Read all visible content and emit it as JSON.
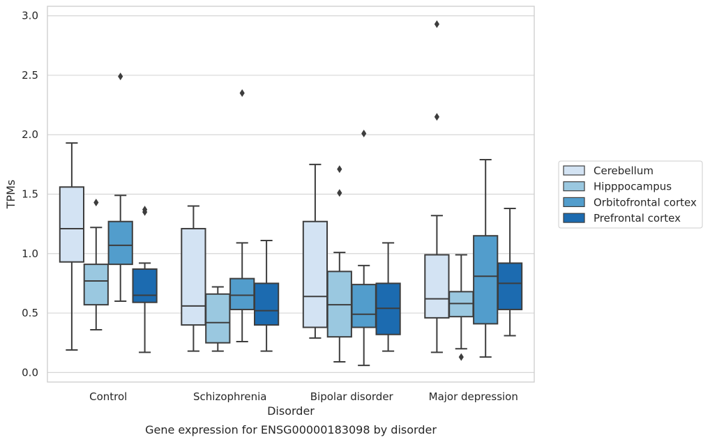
{
  "chart_data": {
    "type": "box",
    "title": "",
    "caption": "Gene expression for ENSG00000183098 by disorder",
    "xlabel": "Disorder",
    "ylabel": "TPMs",
    "ylim": [
      -0.08,
      3.08
    ],
    "yticks": [
      0.0,
      0.5,
      1.0,
      1.5,
      2.0,
      2.5,
      3.0
    ],
    "ytick_labels": [
      "0.0",
      "0.5",
      "1.0",
      "1.5",
      "2.0",
      "2.5",
      "3.0"
    ],
    "grid": true,
    "legend_position": "right-center",
    "categories": [
      "Control",
      "Schizophrenia",
      "Bipolar disorder",
      "Major depression"
    ],
    "series": [
      {
        "name": "Cerebellum",
        "color": "#d3e3f3",
        "boxes": [
          {
            "whislo": 0.19,
            "q1": 0.93,
            "med": 1.21,
            "q3": 1.56,
            "whishi": 1.93,
            "fliers": []
          },
          {
            "whislo": 0.18,
            "q1": 0.4,
            "med": 0.56,
            "q3": 1.21,
            "whishi": 1.4,
            "fliers": []
          },
          {
            "whislo": 0.29,
            "q1": 0.38,
            "med": 0.64,
            "q3": 1.27,
            "whishi": 1.75,
            "fliers": []
          },
          {
            "whislo": 0.17,
            "q1": 0.46,
            "med": 0.62,
            "q3": 0.99,
            "whishi": 1.32,
            "fliers": [
              2.15,
              2.93
            ]
          }
        ]
      },
      {
        "name": "Hipppocampus",
        "color": "#9ac8e0",
        "boxes": [
          {
            "whislo": 0.36,
            "q1": 0.57,
            "med": 0.77,
            "q3": 0.91,
            "whishi": 1.22,
            "fliers": [
              1.43
            ]
          },
          {
            "whislo": 0.18,
            "q1": 0.25,
            "med": 0.42,
            "q3": 0.66,
            "whishi": 0.72,
            "fliers": []
          },
          {
            "whislo": 0.09,
            "q1": 0.3,
            "med": 0.57,
            "q3": 0.85,
            "whishi": 1.01,
            "fliers": [
              1.51,
              1.71
            ]
          },
          {
            "whislo": 0.2,
            "q1": 0.47,
            "med": 0.58,
            "q3": 0.68,
            "whishi": 0.99,
            "fliers": [
              0.13
            ]
          }
        ]
      },
      {
        "name": "Orbitofrontal cortex",
        "color": "#529dcc",
        "boxes": [
          {
            "whislo": 0.6,
            "q1": 0.91,
            "med": 1.07,
            "q3": 1.27,
            "whishi": 1.49,
            "fliers": [
              2.49
            ]
          },
          {
            "whislo": 0.26,
            "q1": 0.53,
            "med": 0.65,
            "q3": 0.79,
            "whishi": 1.09,
            "fliers": [
              2.35
            ]
          },
          {
            "whislo": 0.06,
            "q1": 0.38,
            "med": 0.49,
            "q3": 0.74,
            "whishi": 0.9,
            "fliers": [
              2.01
            ]
          },
          {
            "whislo": 0.13,
            "q1": 0.41,
            "med": 0.81,
            "q3": 1.15,
            "whishi": 1.79,
            "fliers": []
          }
        ]
      },
      {
        "name": "Prefrontal cortex",
        "color": "#1c6bb0",
        "boxes": [
          {
            "whislo": 0.17,
            "q1": 0.59,
            "med": 0.65,
            "q3": 0.87,
            "whishi": 0.92,
            "fliers": [
              1.35,
              1.37
            ]
          },
          {
            "whislo": 0.18,
            "q1": 0.4,
            "med": 0.52,
            "q3": 0.75,
            "whishi": 1.11,
            "fliers": []
          },
          {
            "whislo": 0.18,
            "q1": 0.32,
            "med": 0.54,
            "q3": 0.75,
            "whishi": 1.09,
            "fliers": []
          },
          {
            "whislo": 0.31,
            "q1": 0.53,
            "med": 0.75,
            "q3": 0.92,
            "whishi": 1.38,
            "fliers": []
          }
        ]
      }
    ]
  }
}
